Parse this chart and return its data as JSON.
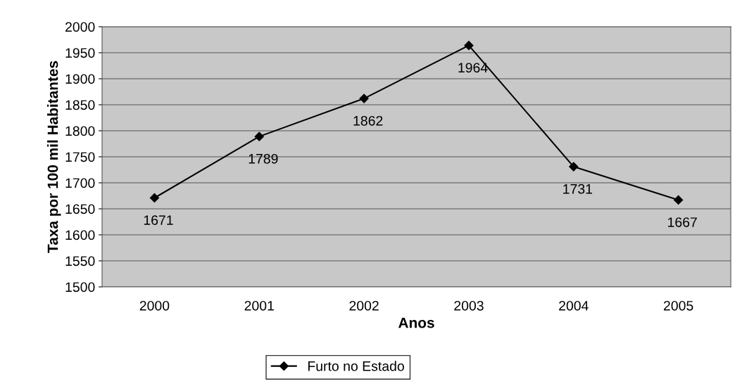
{
  "chart_data": {
    "type": "line",
    "xlabel": "Anos",
    "ylabel": "Taxa por 100 mil Habitantes",
    "categories": [
      "2000",
      "2001",
      "2002",
      "2003",
      "2004",
      "2005"
    ],
    "series": [
      {
        "name": "Furto no Estado",
        "color": "#000000",
        "values": [
          1671,
          1789,
          1862,
          1964,
          1731,
          1667
        ]
      }
    ],
    "ylim": [
      1500,
      2000
    ],
    "yticks": [
      1500,
      1550,
      1600,
      1650,
      1700,
      1750,
      1800,
      1850,
      1900,
      1950,
      2000
    ],
    "grid": "y",
    "legend": "bottom",
    "marker": "diamond",
    "line_style": "solid",
    "data_labels": true
  }
}
